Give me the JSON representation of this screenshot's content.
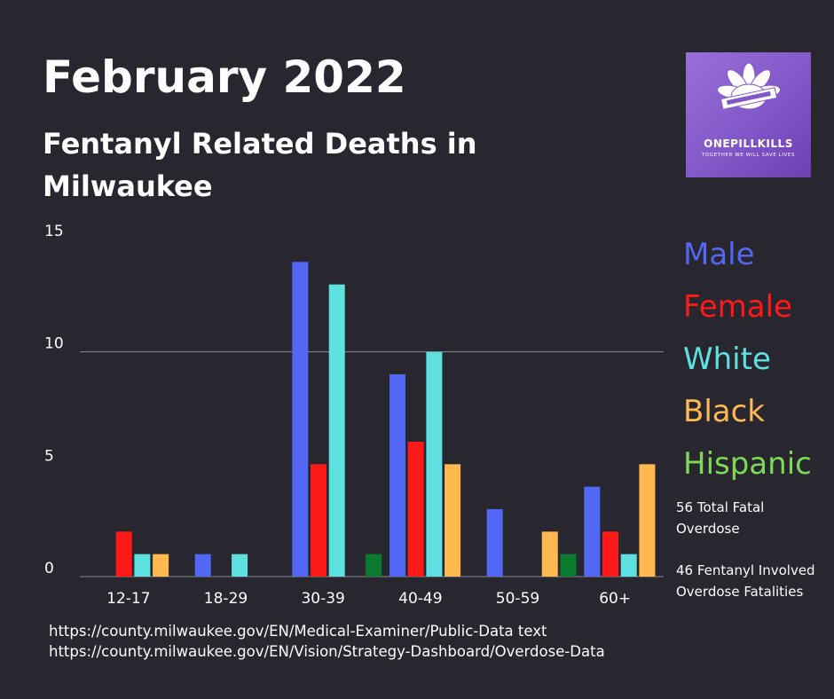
{
  "title": "February 2022",
  "subtitle": "Fentanyl Related Deaths in Milwaukee",
  "logo": {
    "name": "ONEPILLKILLS",
    "tagline": "TOGETHER WE WILL SAVE LIVES",
    "background": "#8a5fd0"
  },
  "colors": {
    "background": "#28262e",
    "Male": "#5268f5",
    "Female": "#ff1a1a",
    "White": "#5ee0e0",
    "Black": "#ffb950",
    "Hispanic": "#0a7a2e",
    "hispanic_legend_text": "#7ed957"
  },
  "legend": [
    "Male",
    "Female",
    "White",
    "Black",
    "Hispanic"
  ],
  "stats": {
    "total": "56 Total Fatal Overdose",
    "fentanyl": "46 Fentanyl Involved Overdose Fatalities"
  },
  "sources": [
    "https://county.milwaukee.gov/EN/Medical-Examiner/Public-Data text",
    "https://county.milwaukee.gov/EN/Vision/Strategy-Dashboard/Overdose-Data"
  ],
  "chart_data": {
    "type": "bar",
    "categories": [
      "12-17",
      "18-29",
      "30-39",
      "40-49",
      "50-59",
      "60+"
    ],
    "series": [
      {
        "name": "Male",
        "values": [
          0,
          1,
          14,
          9,
          3,
          4
        ]
      },
      {
        "name": "Female",
        "values": [
          2,
          0,
          5,
          6,
          0,
          2
        ]
      },
      {
        "name": "White",
        "values": [
          1,
          1,
          13,
          10,
          0,
          1
        ]
      },
      {
        "name": "Black",
        "values": [
          1,
          0,
          0,
          5,
          2,
          5
        ]
      },
      {
        "name": "Hispanic",
        "values": [
          0,
          0,
          1,
          0,
          1,
          0
        ]
      }
    ],
    "yticks": [
      0,
      5,
      10,
      15
    ],
    "ylim": [
      0,
      15
    ],
    "gridlines": [
      10
    ],
    "legend_position": "right"
  }
}
